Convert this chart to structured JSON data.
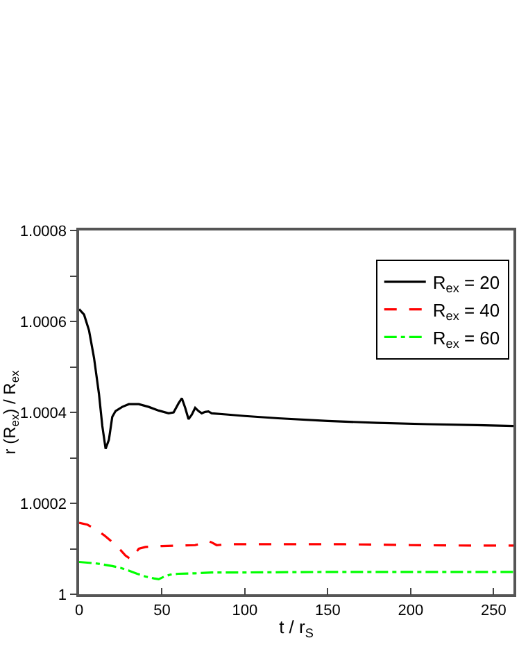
{
  "chart_data": {
    "type": "line",
    "xlabel": "t / r$_{S}$",
    "ylabel": "r (R$_{ex}$) / R$_{ex}$",
    "xlim": [
      0,
      262
    ],
    "xticks": [
      0,
      50,
      100,
      150,
      200,
      250
    ],
    "ylim": [
      1,
      1.0008
    ],
    "yticks": [
      1,
      {
        "value": 1.0001,
        "label": null
      },
      1.0002,
      {
        "value": 1.0003,
        "label": null
      },
      1.0004,
      {
        "value": 1.0005,
        "label": null
      },
      1.0006,
      {
        "value": 1.0007,
        "label": null
      },
      1.0008
    ],
    "grid": false,
    "legend": "top right",
    "marker": "none",
    "series": [
      {
        "name": "R$_{ex}$ = 20",
        "color": "#000000",
        "line_style": "solid",
        "x": [
          0,
          3,
          6,
          9,
          12,
          14,
          16,
          18,
          20,
          22,
          26,
          30,
          36,
          42,
          48,
          54,
          57,
          60,
          62,
          64,
          66,
          68,
          70,
          72,
          74,
          76,
          78,
          80,
          90,
          100,
          120,
          150,
          180,
          210,
          240,
          262
        ],
        "values": [
          1.000627,
          1.000615,
          1.00058,
          1.00052,
          1.00044,
          1.00037,
          1.00032,
          1.00034,
          1.00039,
          1.000403,
          1.000412,
          1.000418,
          1.000418,
          1.000412,
          1.000404,
          1.000398,
          1.0004,
          1.00042,
          1.000431,
          1.00041,
          1.000385,
          1.000395,
          1.00041,
          1.000403,
          1.000398,
          1.000401,
          1.000402,
          1.000398,
          1.000395,
          1.000392,
          1.000387,
          1.000381,
          1.000377,
          1.000374,
          1.000372,
          1.00037
        ]
      },
      {
        "name": "R$_{ex}$ = 40",
        "color": "#ff0000",
        "line_style": "dashed",
        "x": [
          0,
          5,
          10,
          15,
          20,
          25,
          28,
          30,
          32,
          34,
          36,
          40,
          50,
          60,
          70,
          75,
          78,
          80,
          83,
          90,
          120,
          160,
          200,
          240,
          262
        ],
        "values": [
          1.000157,
          1.000153,
          1.000143,
          1.00013,
          1.000115,
          1.000097,
          1.000085,
          1.00008,
          1.000077,
          1.00009,
          1.0001,
          1.000104,
          1.000106,
          1.000107,
          1.000108,
          1.000113,
          1.000117,
          1.000114,
          1.000108,
          1.00011,
          1.00011,
          1.00011,
          1.000108,
          1.000107,
          1.000107
        ]
      },
      {
        "name": "R$_{ex}$ = 60",
        "color": "#00ff00",
        "line_style": "dashdot",
        "x": [
          0,
          10,
          20,
          25,
          30,
          35,
          40,
          45,
          48,
          52,
          56,
          60,
          70,
          80,
          100,
          150,
          200,
          262
        ],
        "values": [
          1.000071,
          1.000068,
          1.000062,
          1.000058,
          1.000052,
          1.000045,
          1.000039,
          1.000035,
          1.000033,
          1.00004,
          1.000044,
          1.000045,
          1.000046,
          1.000048,
          1.000048,
          1.000049,
          1.000049,
          1.000049
        ]
      }
    ]
  }
}
